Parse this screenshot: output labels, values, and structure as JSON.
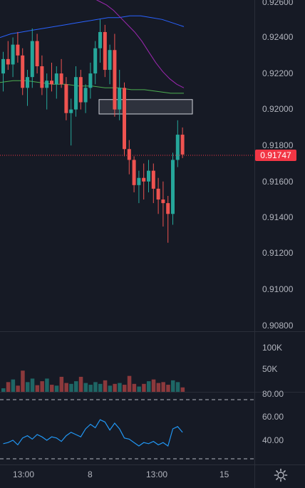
{
  "colors": {
    "background": "#161a25",
    "up": "#26a69a",
    "down": "#ef5350",
    "ma_long": "#2962ff",
    "ma_mid": "#4caf50",
    "ma_fast": "#9c27b0",
    "rsi": "#2196f3",
    "price_line": "#f23645"
  },
  "price_axis": {
    "labels": [
      "0.92600",
      "0.92400",
      "0.92200",
      "0.92000",
      "0.91800",
      "0.91600",
      "0.91400",
      "0.91200",
      "0.91000",
      "0.90800"
    ]
  },
  "current_price": "0.91747",
  "volume_axis": {
    "labels": [
      "100K",
      "50K"
    ]
  },
  "rsi_axis": {
    "labels": [
      "80.00",
      "60.00",
      "40.00"
    ]
  },
  "time_axis": {
    "labels": [
      "13:00",
      "8",
      "13:00",
      "15"
    ]
  },
  "chart_data": {
    "type": "candlestick",
    "series": [
      {
        "name": "price",
        "ohlc": [
          [
            0.922,
            0.9232,
            0.921,
            0.9228
          ],
          [
            0.9228,
            0.9238,
            0.9222,
            0.9225
          ],
          [
            0.9225,
            0.924,
            0.9218,
            0.9236
          ],
          [
            0.9236,
            0.9243,
            0.9226,
            0.923
          ],
          [
            0.923,
            0.9234,
            0.9208,
            0.9212
          ],
          [
            0.9212,
            0.9222,
            0.9202,
            0.9218
          ],
          [
            0.9218,
            0.9245,
            0.9212,
            0.9238
          ],
          [
            0.9238,
            0.9242,
            0.922,
            0.9224
          ],
          [
            0.9224,
            0.923,
            0.9208,
            0.9212
          ],
          [
            0.9212,
            0.922,
            0.92,
            0.9216
          ],
          [
            0.9216,
            0.9226,
            0.921,
            0.9214
          ],
          [
            0.9214,
            0.9224,
            0.9206,
            0.922
          ],
          [
            0.922,
            0.9228,
            0.9212,
            0.9214
          ],
          [
            0.9214,
            0.9218,
            0.9194,
            0.9198
          ],
          [
            0.9198,
            0.9206,
            0.918,
            0.92
          ],
          [
            0.92,
            0.9224,
            0.9196,
            0.9218
          ],
          [
            0.9218,
            0.9222,
            0.92,
            0.9204
          ],
          [
            0.9204,
            0.9214,
            0.9198,
            0.9212
          ],
          [
            0.9212,
            0.9226,
            0.9206,
            0.922
          ],
          [
            0.922,
            0.9238,
            0.9214,
            0.9234
          ],
          [
            0.9234,
            0.925,
            0.9226,
            0.9243
          ],
          [
            0.9243,
            0.9247,
            0.9218,
            0.9222
          ],
          [
            0.9222,
            0.9236,
            0.9214,
            0.9233
          ],
          [
            0.9233,
            0.9242,
            0.9196,
            0.92
          ],
          [
            0.92,
            0.9222,
            0.9194,
            0.9212
          ],
          [
            0.9212,
            0.9215,
            0.9174,
            0.9178
          ],
          [
            0.9178,
            0.9183,
            0.9164,
            0.9172
          ],
          [
            0.9172,
            0.9174,
            0.9154,
            0.9158
          ],
          [
            0.9158,
            0.9166,
            0.9148,
            0.9162
          ],
          [
            0.9162,
            0.917,
            0.915,
            0.916
          ],
          [
            0.916,
            0.9172,
            0.9154,
            0.9166
          ],
          [
            0.9166,
            0.917,
            0.9148,
            0.9156
          ],
          [
            0.9156,
            0.9162,
            0.9142,
            0.915
          ],
          [
            0.915,
            0.916,
            0.9135,
            0.9148
          ],
          [
            0.9148,
            0.9152,
            0.9126,
            0.9142
          ],
          [
            0.9142,
            0.9176,
            0.9136,
            0.9172
          ],
          [
            0.9172,
            0.9194,
            0.9168,
            0.9186
          ],
          [
            0.9186,
            0.919,
            0.9173,
            0.9175
          ]
        ]
      },
      {
        "name": "volume",
        "values": [
          8,
          22,
          28,
          14,
          48,
          22,
          30,
          15,
          24,
          30,
          16,
          14,
          34,
          20,
          18,
          24,
          34,
          20,
          16,
          22,
          18,
          26,
          14,
          18,
          20,
          16,
          36,
          18,
          12,
          18,
          24,
          28,
          20,
          22,
          16,
          26,
          22,
          10
        ]
      },
      {
        "name": "rsi",
        "values": [
          37,
          38,
          40,
          36,
          42,
          44,
          41,
          45,
          43,
          40,
          43,
          42,
          39,
          44,
          47,
          45,
          43,
          50,
          54,
          51,
          58,
          56,
          49,
          55,
          50,
          42,
          41,
          38,
          35,
          38,
          37,
          39,
          36,
          38,
          35,
          50,
          52,
          47
        ]
      }
    ],
    "zone": {
      "top": 0.92055,
      "bottom": 0.91975
    },
    "moving_averages": [
      {
        "color_key": "ma_long",
        "values": [
          0.924,
          0.9242,
          0.9243,
          0.9244,
          0.9245,
          0.9246,
          0.9247,
          0.9248,
          0.9249,
          0.925,
          0.9251,
          0.9251,
          0.9252,
          0.9252,
          0.9251,
          0.925,
          0.9248,
          0.9246
        ]
      },
      {
        "color_key": "ma_mid",
        "values": [
          0.9215,
          0.9216,
          0.9216,
          0.9215,
          0.9214,
          0.9214,
          0.9213,
          0.9213,
          0.9212,
          0.9212,
          0.9211,
          0.9211,
          0.921,
          0.9209,
          0.9209
        ]
      },
      {
        "color_key": "ma_fast",
        "values": [
          0.9265,
          0.9262,
          0.926,
          0.9258,
          0.9255,
          0.9251,
          0.9247,
          0.9243,
          0.9238,
          0.9232,
          0.9226,
          0.9221,
          0.9217,
          0.9214,
          0.9212
        ]
      }
    ]
  }
}
